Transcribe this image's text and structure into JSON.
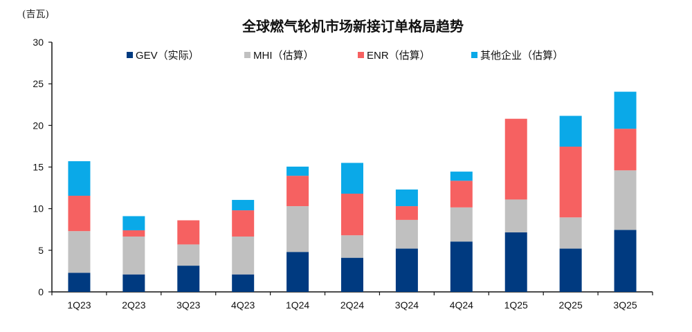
{
  "chart_data": {
    "type": "bar",
    "stacked": true,
    "title": "全球燃气轮机市场新接订单格局趋势",
    "ylabel": "(吉瓦)",
    "xlabel": "",
    "ylim": [
      0,
      30
    ],
    "yticks": [
      0,
      5,
      10,
      15,
      20,
      25,
      30
    ],
    "grid": false,
    "legend_position": "top",
    "categories": [
      "1Q23",
      "2Q23",
      "3Q23",
      "4Q23",
      "1Q24",
      "2Q24",
      "3Q24",
      "4Q24",
      "1Q25",
      "2Q25",
      "3Q25"
    ],
    "series": [
      {
        "name": "GEV（实际）",
        "color": "#003a80",
        "values": [
          2.3,
          2.1,
          3.15,
          2.1,
          4.8,
          4.1,
          5.2,
          6.05,
          7.15,
          5.2,
          7.45
        ]
      },
      {
        "name": "MHI（估算）",
        "color": "#c0c0c0",
        "values": [
          5.0,
          4.55,
          2.55,
          4.55,
          5.5,
          2.7,
          3.45,
          4.1,
          3.95,
          3.75,
          7.15
        ]
      },
      {
        "name": "ENR（估算）",
        "color": "#f66161",
        "values": [
          4.25,
          0.75,
          2.9,
          3.15,
          3.65,
          5.0,
          1.65,
          3.2,
          9.7,
          8.5,
          5.0
        ]
      },
      {
        "name": "其他企业（估算）",
        "color": "#0aa9e8",
        "values": [
          4.15,
          1.7,
          0,
          1.25,
          1.1,
          3.7,
          2.0,
          1.1,
          0,
          3.7,
          4.45
        ]
      }
    ]
  }
}
